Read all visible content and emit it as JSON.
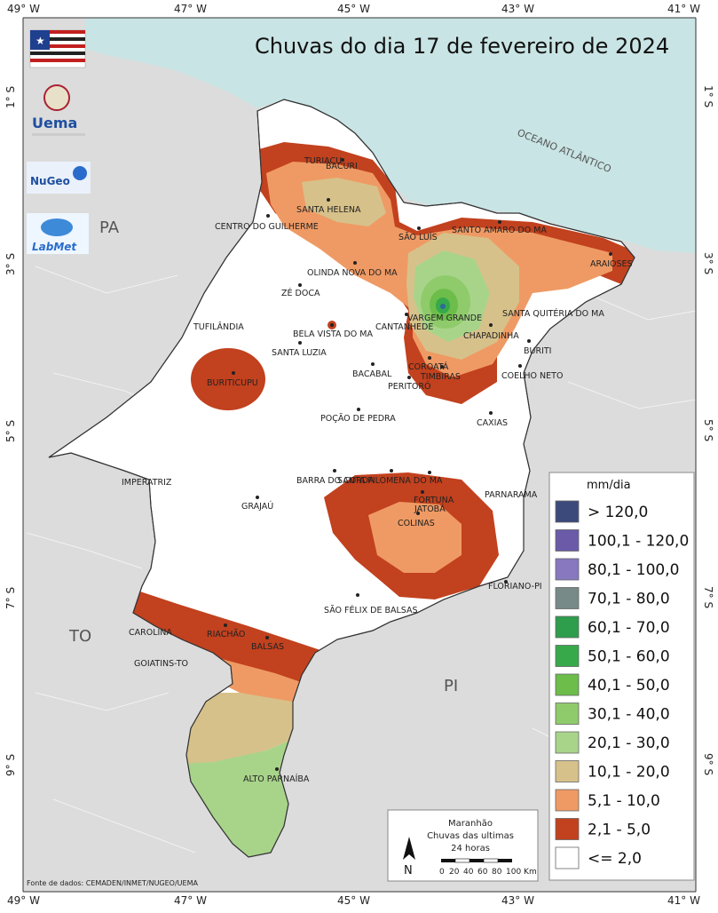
{
  "title": "Chuvas do dia 17 de fevereiro de 2024",
  "top_longitudes": [
    "49° W",
    "47° W",
    "45° W",
    "43° W",
    "41° W"
  ],
  "bottom_longitudes": [
    "49° W",
    "47° W",
    "45° W",
    "43° W",
    "41° W"
  ],
  "left_latitudes": [
    "1° S",
    "3° S",
    "5° S",
    "7° S",
    "9° S"
  ],
  "right_latitudes": [
    "1° S",
    "3° S",
    "5° S",
    "7° S",
    "9° S"
  ],
  "regions": {
    "pa": "PA",
    "to": "TO",
    "pi": "PI",
    "ocean": "OCEANO ATLÂNTICO"
  },
  "logos": {
    "uema": "Uema",
    "nugeo": "NuGeo",
    "labmet": "LabMet"
  },
  "cities": [
    "TURIAÇU",
    "BACURI",
    "SANTA HELENA",
    "CENTRO DO GUILHERME",
    "SÃO LUÍS",
    "SANTO AMARO DO MA",
    "ARAIOSES",
    "OLINDA NOVA DO MA",
    "ZÉ DOCA",
    "VARGEM GRANDE",
    "SANTA QUITÉRIA DO MA",
    "TUFILÂNDIA",
    "CANTANHEDE",
    "BELA VISTA DO MA",
    "CHAPADINHA",
    "SANTA LUZIA",
    "BURITI",
    "COROATÁ",
    "BACABAL",
    "TIMBIRAS",
    "COELHO NETO",
    "BURITICUPU",
    "PERITORÓ",
    "POÇÃO DE PEDRA",
    "CAXIAS",
    "IMPERATRIZ",
    "BARRA DO CORDA",
    "SANTA FILOMENA DO MA",
    "FORTUNA",
    "JATOBÁ",
    "PARNARAMA",
    "GRAJAÚ",
    "COLINAS",
    "FLORIANO-PI",
    "SÃO FÉLIX DE BALSAS",
    "CAROLINA",
    "RIACHÃO",
    "BALSAS",
    "GOIATINS-TO",
    "ALTO PARNAÍBA"
  ],
  "legend": {
    "title": "mm/dia",
    "classes": [
      {
        "label": "> 120,0",
        "color": "#3b4a7a"
      },
      {
        "label": "100,1 - 120,0",
        "color": "#6a5aa8"
      },
      {
        "label": "80,1 - 100,0",
        "color": "#8878c0"
      },
      {
        "label": "70,1 - 80,0",
        "color": "#778a88"
      },
      {
        "label": "60,1 - 70,0",
        "color": "#2e9d4c"
      },
      {
        "label": "50,1 - 60,0",
        "color": "#37a94a"
      },
      {
        "label": "40,1 - 50,0",
        "color": "#6cbd4a"
      },
      {
        "label": "30,1 - 40,0",
        "color": "#8fcb6a"
      },
      {
        "label": "20,1 - 30,0",
        "color": "#a8d48a"
      },
      {
        "label": "10,1 - 20,0",
        "color": "#d7c18a"
      },
      {
        "label": "5,1 - 10,0",
        "color": "#ef9a64"
      },
      {
        "label": "2,1 - 5,0",
        "color": "#c2411e"
      },
      {
        "label": "<= 2,0",
        "color": "#ffffff"
      }
    ]
  },
  "inset": {
    "line1": "Maranhão",
    "line2": "Chuvas das ultimas",
    "line3": "24 horas",
    "north": "N",
    "scale_ticks": [
      "0",
      "20",
      "40",
      "60",
      "80",
      "100 Km"
    ]
  },
  "source": "Fonte de dados: CEMADEN/INMET/NUGEO/UEMA",
  "colors": {
    "ocean": "#c9e4e4",
    "land_outside": "#dcdcdc",
    "state_fill": "#ffffff"
  }
}
